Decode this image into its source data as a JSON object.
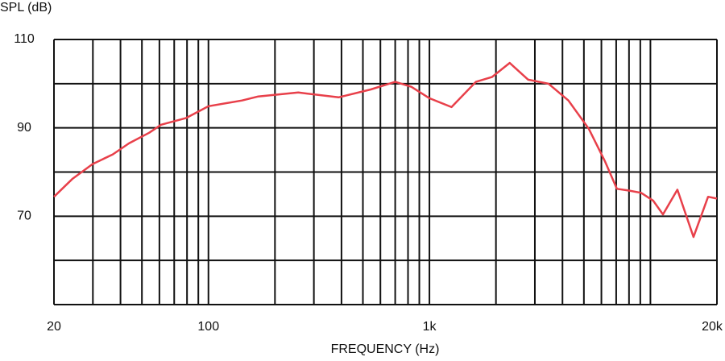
{
  "chart_data": {
    "type": "line",
    "y_label": "SPL (dB)",
    "x_label": "FREQUENCY (Hz)",
    "x_scale": "log",
    "grid": true,
    "xlim": [
      20,
      20000
    ],
    "ylim": [
      50,
      110
    ],
    "xticks": [
      20,
      100,
      {
        "value": 1000,
        "label": "1k"
      },
      {
        "value": 20000,
        "label": "20k"
      }
    ],
    "xgrid": [
      20,
      30,
      40,
      50,
      60,
      70,
      80,
      90,
      100,
      200,
      300,
      400,
      500,
      600,
      700,
      800,
      900,
      1000,
      2000,
      3000,
      4000,
      5000,
      6000,
      7000,
      8000,
      9000,
      10000,
      20000
    ],
    "yticks": [
      70,
      90,
      110
    ],
    "ygrid": [
      50,
      60,
      70,
      80,
      90,
      100,
      110
    ],
    "x": [
      20,
      24.3,
      29.9,
      36.9,
      43.7,
      54,
      61,
      79,
      100,
      142,
      168,
      255,
      388,
      543,
      700,
      828,
      1000,
      1259,
      1622,
      1918,
      2307,
      2798,
      3454,
      4256,
      5260,
      6220,
      7050,
      8000,
      9080,
      10300,
      11400,
      13240,
      15660,
      18240,
      20000
    ],
    "series": [
      {
        "color": "#e8404a",
        "values": [
          74.4,
          78.5,
          81.8,
          84.0,
          86.5,
          88.9,
          90.7,
          92.2,
          94.9,
          96.2,
          97.1,
          98.0,
          96.9,
          98.7,
          100.4,
          99.3,
          96.7,
          94.7,
          100.4,
          101.5,
          104.7,
          100.9,
          100,
          96.2,
          89.8,
          82.5,
          76.2,
          75.8,
          75.3,
          73.5,
          70.4,
          76,
          65.3,
          74.4,
          74
        ]
      }
    ]
  }
}
